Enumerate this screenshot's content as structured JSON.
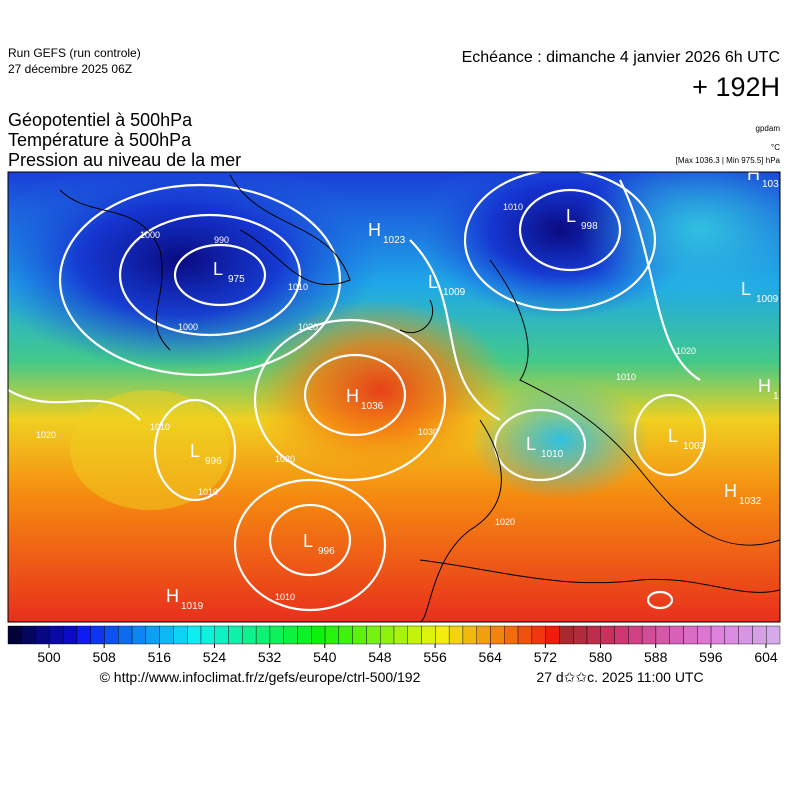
{
  "header": {
    "run": "Run GEFS (run controle)",
    "run_date": "27 décembre 2025 06Z",
    "echeance": "Echéance : dimanche 4 janvier 2026 6h UTC",
    "lead": "+ 192H"
  },
  "fields": [
    "Géopotentiel à 500hPa",
    "Température à 500hPa",
    "Pression au niveau de la mer"
  ],
  "units": [
    "gpdam",
    "°C",
    "[Max 1036.3 | Min 975.5] hPa"
  ],
  "pressure_centers": [
    {
      "label": "L",
      "value": "975"
    },
    {
      "label": "H",
      "value": "1023"
    },
    {
      "label": "L",
      "value": "1009"
    },
    {
      "label": "L",
      "value": "998"
    },
    {
      "label": "H",
      "value": "1036"
    },
    {
      "label": "L",
      "value": "996"
    },
    {
      "label": "L",
      "value": "1010"
    },
    {
      "label": "L",
      "value": "1003"
    },
    {
      "label": "H",
      "value": "1032"
    },
    {
      "label": "L",
      "value": "996"
    },
    {
      "label": "H",
      "value": "1019"
    },
    {
      "label": "L",
      "value": "1009"
    },
    {
      "label": "H",
      "value": "103"
    },
    {
      "label": "H",
      "value": "1"
    }
  ],
  "isobar_labels": [
    "1000",
    "990",
    "1000",
    "1010",
    "1020",
    "1020",
    "1010",
    "1010",
    "1020",
    "1030",
    "1020",
    "1010",
    "1020",
    "1010",
    "1010"
  ],
  "colorbar_ticks": [
    500,
    508,
    516,
    524,
    532,
    540,
    548,
    556,
    564,
    572,
    580,
    588,
    596,
    604
  ],
  "footer": {
    "url": "© http://www.infoclimat.fr/z/gefs/europe/ctrl-500/192",
    "timestamp": "27 d✩✩c. 2025 11:00 UTC"
  }
}
